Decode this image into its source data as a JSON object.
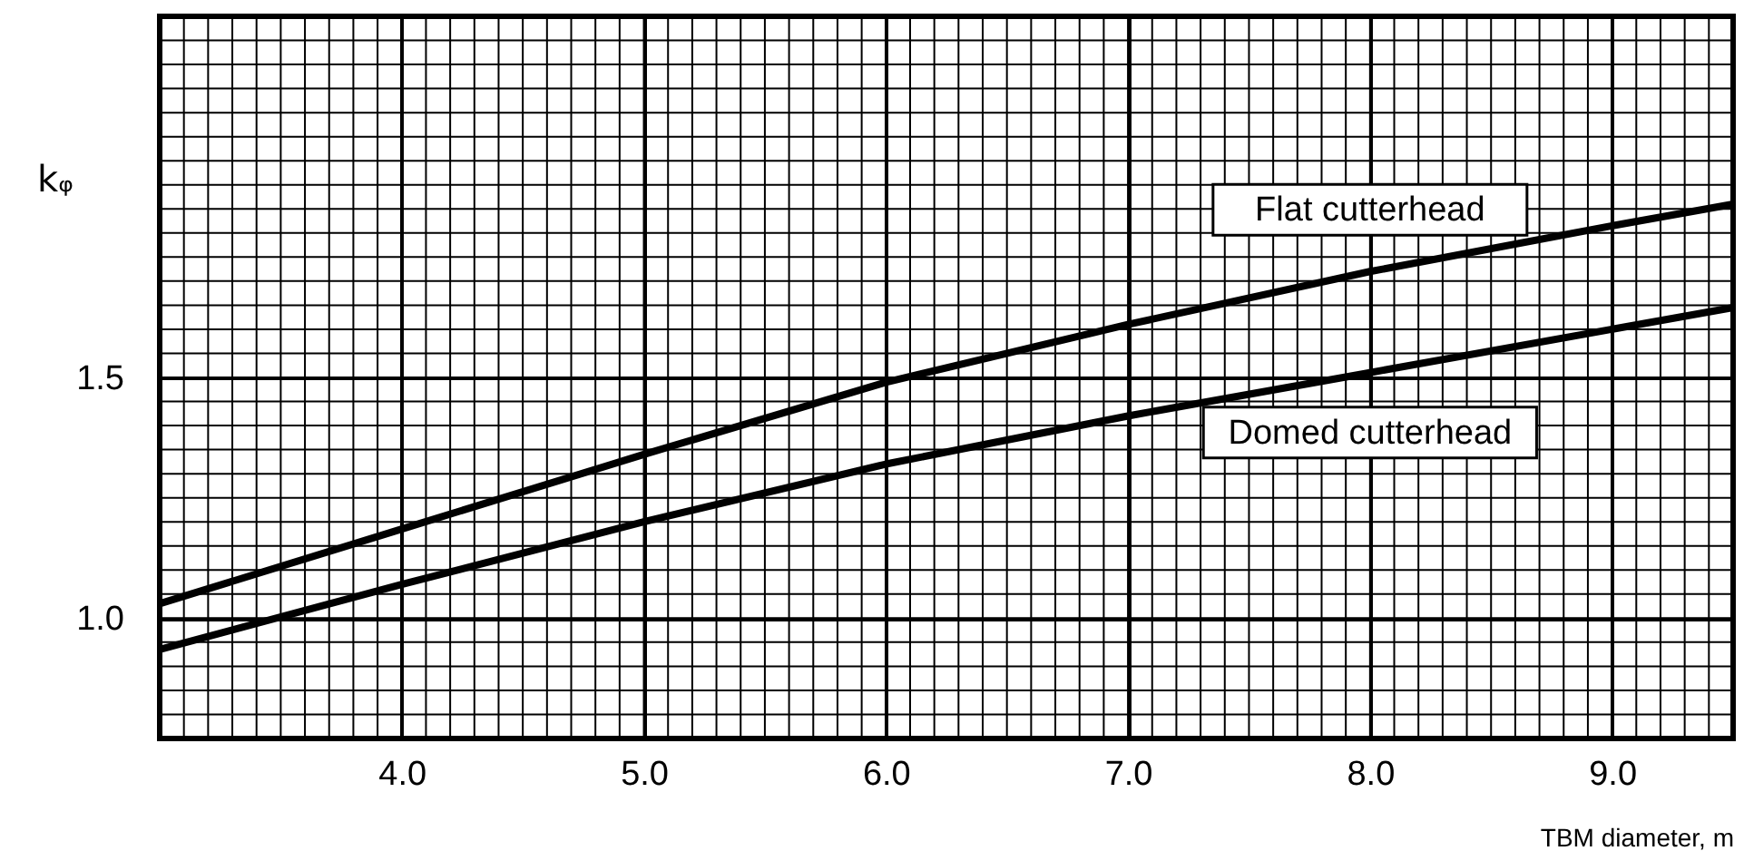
{
  "chart_data": {
    "type": "line",
    "xlabel": "TBM diameter, m",
    "ylabel": "kᵩ",
    "x": [
      3.0,
      4.0,
      5.0,
      6.0,
      7.0,
      8.0,
      9.0,
      9.5
    ],
    "series": [
      {
        "name": "Flat cutterhead",
        "color": "#000000",
        "values": [
          1.03,
          1.185,
          1.34,
          1.49,
          1.61,
          1.72,
          1.815,
          1.86
        ]
      },
      {
        "name": "Domed cutterhead",
        "color": "#000000",
        "values": [
          0.935,
          1.07,
          1.2,
          1.32,
          1.42,
          1.51,
          1.6,
          1.645
        ]
      }
    ],
    "xlim": [
      3.0,
      9.5
    ],
    "xticks": [
      {
        "value": 4,
        "label": "4.0"
      },
      {
        "value": 5,
        "label": "5.0"
      },
      {
        "value": 6,
        "label": "6.0"
      },
      {
        "value": 7,
        "label": "7.0"
      },
      {
        "value": 8,
        "label": "8.0"
      },
      {
        "value": 9,
        "label": "9.0"
      }
    ],
    "ylim": [
      0.75,
      2.25
    ],
    "yticks": [
      {
        "value": 1,
        "label": "1.0"
      },
      {
        "value": 1.5,
        "label": "1.5"
      }
    ],
    "grid": true,
    "marker": "none",
    "line_style": "solid"
  }
}
